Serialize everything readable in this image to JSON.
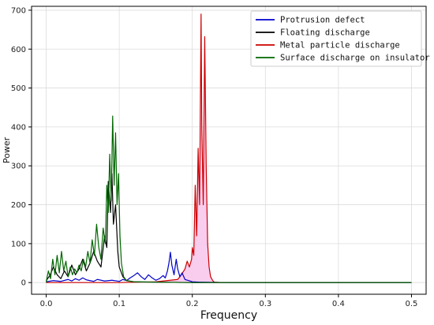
{
  "chart_data": {
    "type": "line",
    "title": "",
    "xlabel": "Frequency",
    "ylabel": "Power",
    "xlim": [
      -0.02,
      0.52
    ],
    "ylim": [
      -30,
      710
    ],
    "x_ticks": [
      0.0,
      0.1,
      0.2,
      0.3,
      0.4,
      0.5
    ],
    "x_tick_labels": [
      "0.0",
      "0.1",
      "0.2",
      "0.3",
      "0.4",
      "0.5"
    ],
    "y_ticks": [
      0,
      100,
      200,
      300,
      400,
      500,
      600,
      700
    ],
    "y_tick_labels": [
      "0",
      "100",
      "200",
      "300",
      "400",
      "500",
      "600",
      "700"
    ],
    "grid": true,
    "legend_position": "top-right",
    "series": [
      {
        "name": "Protrusion defect",
        "color": "#0000cc",
        "points": [
          [
            0.0,
            2
          ],
          [
            0.01,
            5
          ],
          [
            0.02,
            3
          ],
          [
            0.03,
            8
          ],
          [
            0.035,
            4
          ],
          [
            0.04,
            10
          ],
          [
            0.045,
            6
          ],
          [
            0.05,
            12
          ],
          [
            0.055,
            7
          ],
          [
            0.06,
            5
          ],
          [
            0.065,
            3
          ],
          [
            0.07,
            8
          ],
          [
            0.08,
            4
          ],
          [
            0.09,
            6
          ],
          [
            0.1,
            3
          ],
          [
            0.105,
            8
          ],
          [
            0.11,
            5
          ],
          [
            0.115,
            12
          ],
          [
            0.12,
            18
          ],
          [
            0.125,
            25
          ],
          [
            0.13,
            15
          ],
          [
            0.135,
            8
          ],
          [
            0.14,
            20
          ],
          [
            0.145,
            12
          ],
          [
            0.15,
            6
          ],
          [
            0.155,
            10
          ],
          [
            0.16,
            18
          ],
          [
            0.163,
            12
          ],
          [
            0.166,
            30
          ],
          [
            0.168,
            50
          ],
          [
            0.17,
            78
          ],
          [
            0.172,
            45
          ],
          [
            0.175,
            20
          ],
          [
            0.178,
            60
          ],
          [
            0.18,
            35
          ],
          [
            0.183,
            15
          ],
          [
            0.186,
            25
          ],
          [
            0.19,
            8
          ],
          [
            0.195,
            5
          ],
          [
            0.2,
            2
          ],
          [
            0.21,
            1
          ],
          [
            0.25,
            0
          ],
          [
            0.5,
            0
          ]
        ]
      },
      {
        "name": "Floating discharge",
        "color": "#000000",
        "points": [
          [
            0.0,
            5
          ],
          [
            0.005,
            18
          ],
          [
            0.01,
            40
          ],
          [
            0.015,
            20
          ],
          [
            0.02,
            10
          ],
          [
            0.025,
            30
          ],
          [
            0.03,
            15
          ],
          [
            0.035,
            45
          ],
          [
            0.04,
            20
          ],
          [
            0.045,
            35
          ],
          [
            0.05,
            60
          ],
          [
            0.055,
            30
          ],
          [
            0.06,
            50
          ],
          [
            0.065,
            80
          ],
          [
            0.07,
            55
          ],
          [
            0.075,
            40
          ],
          [
            0.08,
            120
          ],
          [
            0.083,
            90
          ],
          [
            0.085,
            260
          ],
          [
            0.088,
            180
          ],
          [
            0.09,
            280
          ],
          [
            0.092,
            150
          ],
          [
            0.095,
            200
          ],
          [
            0.098,
            80
          ],
          [
            0.1,
            40
          ],
          [
            0.105,
            15
          ],
          [
            0.11,
            5
          ],
          [
            0.12,
            2
          ],
          [
            0.15,
            1
          ],
          [
            0.2,
            0
          ],
          [
            0.5,
            0
          ]
        ]
      },
      {
        "name": "Metal particle discharge",
        "color": "#cc0000",
        "fill": "#f8c8ec",
        "points": [
          [
            0.0,
            0
          ],
          [
            0.1,
            0
          ],
          [
            0.15,
            2
          ],
          [
            0.18,
            8
          ],
          [
            0.185,
            20
          ],
          [
            0.19,
            35
          ],
          [
            0.193,
            55
          ],
          [
            0.196,
            40
          ],
          [
            0.199,
            60
          ],
          [
            0.2,
            90
          ],
          [
            0.202,
            70
          ],
          [
            0.204,
            250
          ],
          [
            0.206,
            120
          ],
          [
            0.208,
            345
          ],
          [
            0.21,
            200
          ],
          [
            0.212,
            690
          ],
          [
            0.213,
            400
          ],
          [
            0.215,
            200
          ],
          [
            0.217,
            632
          ],
          [
            0.219,
            300
          ],
          [
            0.221,
            100
          ],
          [
            0.223,
            40
          ],
          [
            0.225,
            15
          ],
          [
            0.228,
            5
          ],
          [
            0.23,
            1
          ],
          [
            0.24,
            0
          ],
          [
            0.5,
            0
          ]
        ]
      },
      {
        "name": "Surface discharge on insulator",
        "color": "#006600",
        "points": [
          [
            0.0,
            0
          ],
          [
            0.003,
            30
          ],
          [
            0.006,
            10
          ],
          [
            0.009,
            60
          ],
          [
            0.012,
            20
          ],
          [
            0.015,
            70
          ],
          [
            0.018,
            25
          ],
          [
            0.021,
            80
          ],
          [
            0.024,
            30
          ],
          [
            0.027,
            55
          ],
          [
            0.03,
            15
          ],
          [
            0.033,
            40
          ],
          [
            0.036,
            20
          ],
          [
            0.039,
            35
          ],
          [
            0.042,
            25
          ],
          [
            0.045,
            45
          ],
          [
            0.048,
            30
          ],
          [
            0.051,
            60
          ],
          [
            0.054,
            40
          ],
          [
            0.057,
            80
          ],
          [
            0.06,
            50
          ],
          [
            0.063,
            110
          ],
          [
            0.066,
            70
          ],
          [
            0.069,
            150
          ],
          [
            0.072,
            90
          ],
          [
            0.075,
            60
          ],
          [
            0.078,
            140
          ],
          [
            0.081,
            100
          ],
          [
            0.083,
            250
          ],
          [
            0.085,
            180
          ],
          [
            0.087,
            330
          ],
          [
            0.089,
            210
          ],
          [
            0.091,
            428
          ],
          [
            0.093,
            250
          ],
          [
            0.095,
            385
          ],
          [
            0.097,
            200
          ],
          [
            0.099,
            280
          ],
          [
            0.101,
            120
          ],
          [
            0.103,
            50
          ],
          [
            0.106,
            15
          ],
          [
            0.11,
            5
          ],
          [
            0.12,
            2
          ],
          [
            0.15,
            1
          ],
          [
            0.2,
            0
          ],
          [
            0.25,
            0
          ],
          [
            0.3,
            0
          ],
          [
            0.4,
            0
          ],
          [
            0.5,
            0
          ]
        ]
      }
    ]
  }
}
